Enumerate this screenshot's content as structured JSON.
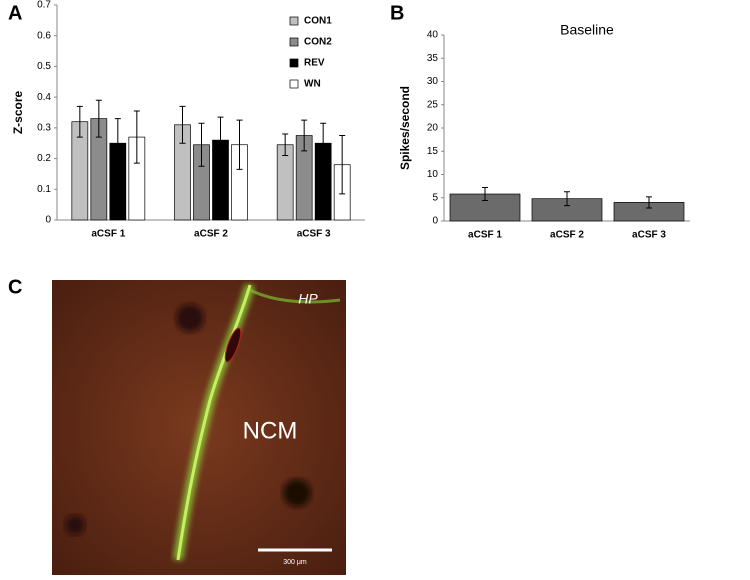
{
  "panel_labels": [
    "A",
    "B",
    "C"
  ],
  "chart_data": [
    {
      "type": "bar",
      "ylabel": "Z-score",
      "categories": [
        "aCSF 1",
        "aCSF 2",
        "aCSF 3"
      ],
      "series": [
        {
          "name": "CON1",
          "color": "#c0c0c0",
          "values": [
            0.32,
            0.31,
            0.245
          ],
          "errors": [
            0.05,
            0.06,
            0.035
          ]
        },
        {
          "name": "CON2",
          "color": "#8c8c8c",
          "values": [
            0.33,
            0.245,
            0.275
          ],
          "errors": [
            0.06,
            0.07,
            0.05
          ]
        },
        {
          "name": "REV",
          "color": "#000000",
          "values": [
            0.25,
            0.26,
            0.25
          ],
          "errors": [
            0.08,
            0.075,
            0.065
          ]
        },
        {
          "name": "WN",
          "color": "#ffffff",
          "values": [
            0.27,
            0.245,
            0.18
          ],
          "errors": [
            0.085,
            0.08,
            0.095
          ]
        }
      ],
      "ylim": [
        0,
        0.7
      ],
      "yticks": [
        0,
        0.1,
        0.2,
        0.3,
        0.4,
        0.5,
        0.6,
        0.7
      ],
      "legend": "top-right",
      "grid": false
    },
    {
      "type": "bar",
      "title": "Baseline",
      "ylabel": "Spikes/second",
      "categories": [
        "aCSF 1",
        "aCSF 2",
        "aCSF 3"
      ],
      "values": [
        5.8,
        4.8,
        4.0
      ],
      "errors": [
        1.4,
        1.5,
        1.2
      ],
      "color": "#6b6b6b",
      "ylim": [
        0,
        40
      ],
      "yticks": [
        0,
        5,
        10,
        15,
        20,
        25,
        30,
        35,
        40
      ],
      "grid": false
    }
  ],
  "image": {
    "labels": [
      "HP",
      "NCM"
    ],
    "scale_bar": "300 μm"
  }
}
